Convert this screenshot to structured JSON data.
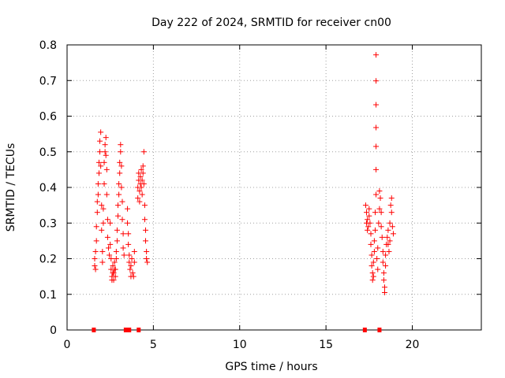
{
  "chart_data": {
    "type": "scatter",
    "title": "Day 222 of 2024, SRMTID for receiver cn00",
    "xlabel": "GPS time / hours",
    "ylabel": "SRMTID / TECUs",
    "xlim": [
      0,
      24
    ],
    "ylim": [
      0,
      0.8
    ],
    "xticks": [
      0,
      5,
      10,
      15,
      20
    ],
    "xtick_labels": [
      "0",
      "5",
      "10",
      "15",
      "20"
    ],
    "yticks": [
      0,
      0.1,
      0.2,
      0.3,
      0.4,
      0.5,
      0.6,
      0.7,
      0.8
    ],
    "ytick_labels": [
      "0",
      "0.1",
      "0.2",
      "0.3",
      "0.4",
      "0.5",
      "0.6",
      "0.7",
      "0.8"
    ],
    "grid": true,
    "marker": "plus",
    "color": "#ff0000",
    "series": [
      {
        "name": "SRMTID",
        "points": [
          [
            1.6,
            0.18
          ],
          [
            1.6,
            0.2
          ],
          [
            1.65,
            0.17
          ],
          [
            1.65,
            0.22
          ],
          [
            1.7,
            0.25
          ],
          [
            1.7,
            0.29
          ],
          [
            1.75,
            0.33
          ],
          [
            1.75,
            0.36
          ],
          [
            1.8,
            0.38
          ],
          [
            1.8,
            0.41
          ],
          [
            1.85,
            0.44
          ],
          [
            1.85,
            0.47
          ],
          [
            1.9,
            0.5
          ],
          [
            1.9,
            0.53
          ],
          [
            1.95,
            0.555
          ],
          [
            1.95,
            0.46
          ],
          [
            2.0,
            0.35
          ],
          [
            2.0,
            0.28
          ],
          [
            2.05,
            0.22
          ],
          [
            2.05,
            0.19
          ],
          [
            2.1,
            0.3
          ],
          [
            2.1,
            0.34
          ],
          [
            2.15,
            0.41
          ],
          [
            2.15,
            0.47
          ],
          [
            2.2,
            0.5
          ],
          [
            2.2,
            0.52
          ],
          [
            2.25,
            0.54
          ],
          [
            2.25,
            0.49
          ],
          [
            2.3,
            0.45
          ],
          [
            2.3,
            0.38
          ],
          [
            2.35,
            0.31
          ],
          [
            2.35,
            0.26
          ],
          [
            2.4,
            0.23
          ],
          [
            2.45,
            0.21
          ],
          [
            2.5,
            0.24
          ],
          [
            2.5,
            0.3
          ],
          [
            2.55,
            0.2
          ],
          [
            2.55,
            0.17
          ],
          [
            2.6,
            0.15
          ],
          [
            2.6,
            0.14
          ],
          [
            2.65,
            0.16
          ],
          [
            2.65,
            0.18
          ],
          [
            2.7,
            0.14
          ],
          [
            2.7,
            0.16
          ],
          [
            2.75,
            0.17
          ],
          [
            2.75,
            0.19
          ],
          [
            2.8,
            0.15
          ],
          [
            2.8,
            0.17
          ],
          [
            2.85,
            0.2
          ],
          [
            2.85,
            0.22
          ],
          [
            2.9,
            0.25
          ],
          [
            2.9,
            0.28
          ],
          [
            2.95,
            0.32
          ],
          [
            2.95,
            0.35
          ],
          [
            3.0,
            0.38
          ],
          [
            3.0,
            0.41
          ],
          [
            3.05,
            0.44
          ],
          [
            3.05,
            0.47
          ],
          [
            3.1,
            0.5
          ],
          [
            3.1,
            0.52
          ],
          [
            3.15,
            0.46
          ],
          [
            3.15,
            0.4
          ],
          [
            3.2,
            0.36
          ],
          [
            3.2,
            0.31
          ],
          [
            3.25,
            0.27
          ],
          [
            3.25,
            0.23
          ],
          [
            3.3,
            0.21
          ],
          [
            3.5,
            0.34
          ],
          [
            3.5,
            0.3
          ],
          [
            3.55,
            0.27
          ],
          [
            3.55,
            0.24
          ],
          [
            3.6,
            0.21
          ],
          [
            3.6,
            0.19
          ],
          [
            3.65,
            0.17
          ],
          [
            3.7,
            0.15
          ],
          [
            3.7,
            0.18
          ],
          [
            3.75,
            0.2
          ],
          [
            3.8,
            0.16
          ],
          [
            3.85,
            0.15
          ],
          [
            3.9,
            0.19
          ],
          [
            3.9,
            0.22
          ],
          [
            4.1,
            0.37
          ],
          [
            4.1,
            0.4
          ],
          [
            4.15,
            0.42
          ],
          [
            4.15,
            0.44
          ],
          [
            4.2,
            0.39
          ],
          [
            4.2,
            0.36
          ],
          [
            4.25,
            0.41
          ],
          [
            4.25,
            0.43
          ],
          [
            4.3,
            0.45
          ],
          [
            4.3,
            0.4
          ],
          [
            4.35,
            0.38
          ],
          [
            4.35,
            0.42
          ],
          [
            4.4,
            0.44
          ],
          [
            4.4,
            0.46
          ],
          [
            4.45,
            0.5
          ],
          [
            4.45,
            0.41
          ],
          [
            4.5,
            0.35
          ],
          [
            4.5,
            0.31
          ],
          [
            4.55,
            0.28
          ],
          [
            4.55,
            0.25
          ],
          [
            4.6,
            0.22
          ],
          [
            4.6,
            0.2
          ],
          [
            4.65,
            0.19
          ],
          [
            17.3,
            0.35
          ],
          [
            17.35,
            0.33
          ],
          [
            17.35,
            0.3
          ],
          [
            17.4,
            0.28
          ],
          [
            17.4,
            0.31
          ],
          [
            17.45,
            0.29
          ],
          [
            17.5,
            0.32
          ],
          [
            17.5,
            0.34
          ],
          [
            17.55,
            0.3
          ],
          [
            17.6,
            0.27
          ],
          [
            17.6,
            0.24
          ],
          [
            17.65,
            0.21
          ],
          [
            17.65,
            0.18
          ],
          [
            17.7,
            0.16
          ],
          [
            17.7,
            0.14
          ],
          [
            17.75,
            0.15
          ],
          [
            17.75,
            0.19
          ],
          [
            17.8,
            0.22
          ],
          [
            17.8,
            0.25
          ],
          [
            17.85,
            0.28
          ],
          [
            17.85,
            0.33
          ],
          [
            17.9,
            0.38
          ],
          [
            17.9,
            0.45
          ],
          [
            17.9,
            0.515
          ],
          [
            17.9,
            0.568
          ],
          [
            17.9,
            0.632
          ],
          [
            17.9,
            0.699
          ],
          [
            17.9,
            0.772
          ],
          [
            17.95,
            0.2
          ],
          [
            18.0,
            0.17
          ],
          [
            18.0,
            0.23
          ],
          [
            18.05,
            0.3
          ],
          [
            18.1,
            0.34
          ],
          [
            18.1,
            0.39
          ],
          [
            18.15,
            0.37
          ],
          [
            18.2,
            0.33
          ],
          [
            18.2,
            0.29
          ],
          [
            18.25,
            0.26
          ],
          [
            18.3,
            0.22
          ],
          [
            18.3,
            0.19
          ],
          [
            18.35,
            0.16
          ],
          [
            18.35,
            0.14
          ],
          [
            18.4,
            0.12
          ],
          [
            18.4,
            0.105
          ],
          [
            18.45,
            0.18
          ],
          [
            18.45,
            0.21
          ],
          [
            18.5,
            0.24
          ],
          [
            18.55,
            0.26
          ],
          [
            18.6,
            0.28
          ],
          [
            18.6,
            0.24
          ],
          [
            18.65,
            0.22
          ],
          [
            18.7,
            0.25
          ],
          [
            18.7,
            0.3
          ],
          [
            18.75,
            0.35
          ],
          [
            18.8,
            0.37
          ],
          [
            18.8,
            0.33
          ],
          [
            18.85,
            0.29
          ],
          [
            18.9,
            0.27
          ]
        ]
      }
    ],
    "baseline_markers": {
      "y": 0,
      "x": [
        1.55,
        3.4,
        3.5,
        3.6,
        4.15,
        17.25,
        18.1
      ]
    }
  }
}
